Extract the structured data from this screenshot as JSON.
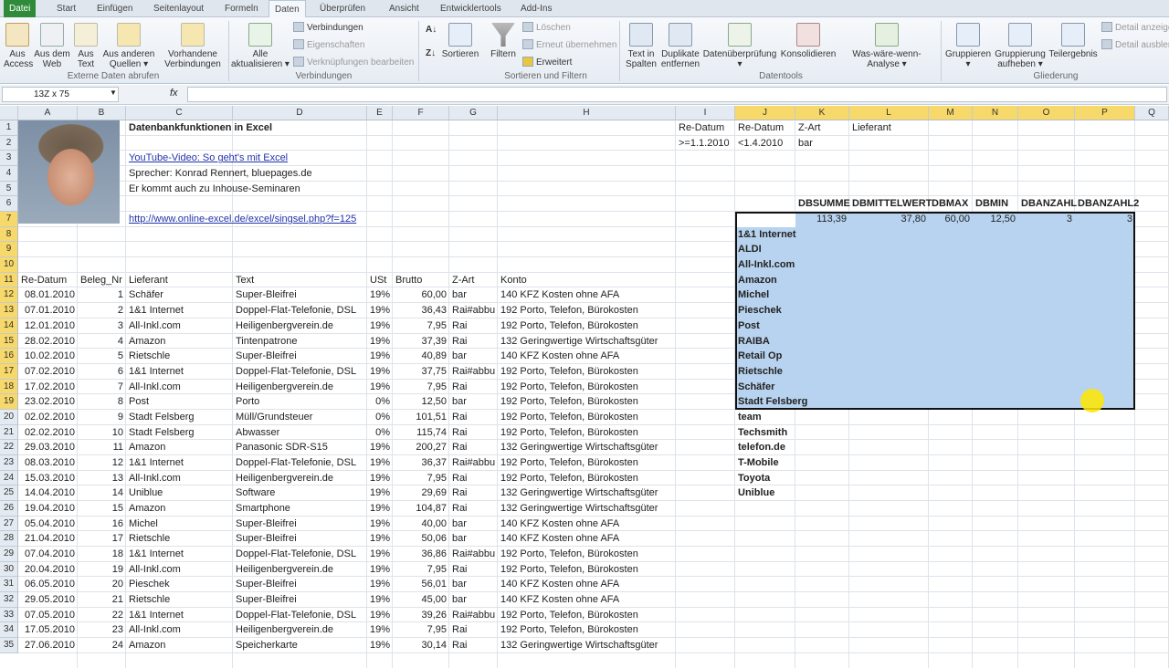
{
  "tabs": [
    "Datei",
    "Start",
    "Einfügen",
    "Seitenlayout",
    "Formeln",
    "Daten",
    "Überprüfen",
    "Ansicht",
    "Entwicklertools",
    "Add-Ins"
  ],
  "active_tab": "Daten",
  "ribbon": {
    "externe": {
      "aus_access": "Aus Access",
      "aus_web": "Aus dem Web",
      "aus_text": "Aus Text",
      "aus_anderen": "Aus anderen Quellen ▾",
      "vorhandene": "Vorhandene Verbindungen",
      "group": "Externe Daten abrufen"
    },
    "verbindungen": {
      "alle": "Alle aktualisieren ▾",
      "verbindungen": "Verbindungen",
      "eigenschaften": "Eigenschaften",
      "verknuepfungen": "Verknüpfungen bearbeiten",
      "group": "Verbindungen"
    },
    "sortieren": {
      "sortieren": "Sortieren",
      "filtern": "Filtern",
      "loeschen": "Löschen",
      "erneut": "Erneut übernehmen",
      "erweitert": "Erweitert",
      "group": "Sortieren und Filtern"
    },
    "datentools": {
      "text_in_spalten": "Text in Spalten",
      "duplikate": "Duplikate entfernen",
      "datenueberpruefung": "Datenüberprüfung ▾",
      "konsolidieren": "Konsolidieren",
      "was_waere": "Was-wäre-wenn-Analyse ▾",
      "group": "Datentools"
    },
    "gliederung": {
      "gruppieren": "Gruppieren ▾",
      "gruppierung_aufheben": "Gruppierung aufheben ▾",
      "teilergebnis": "Teilergebnis",
      "detail_anzeigen": "Detail anzeigen",
      "detail_ausblenden": "Detail ausblenden",
      "group": "Gliederung"
    }
  },
  "formula_bar": {
    "name_box": "13Z x 75",
    "fx": "fx",
    "formula": ""
  },
  "columns": [
    "A",
    "B",
    "C",
    "D",
    "E",
    "F",
    "G",
    "H",
    "I",
    "J",
    "K",
    "L",
    "M",
    "N",
    "O",
    "P",
    "Q"
  ],
  "rows": [
    {
      "n": 1,
      "cells": {
        "C": "Datenbankfunktionen in Excel",
        "I": "Re-Datum",
        "J": "Re-Datum",
        "K": "Z-Art",
        "L": "Lieferant"
      }
    },
    {
      "n": 2,
      "cells": {
        "I": ">=1.1.2010",
        "J": "<1.4.2010",
        "K": "bar"
      }
    },
    {
      "n": 3,
      "cells": {
        "C": "YouTube-Video: So geht's mit Excel"
      }
    },
    {
      "n": 4,
      "cells": {
        "C": "Sprecher: Konrad Rennert, bluepages.de"
      }
    },
    {
      "n": 5,
      "cells": {
        "C": "Er kommt auch zu Inhouse-Seminaren"
      }
    },
    {
      "n": 6,
      "cells": {
        "K": "DBSUMME",
        "L": "DBMITTELWERT",
        "M": "DBMAX",
        "N": "DBMIN",
        "O": "DBANZAHL",
        "P": "DBANZAHL2"
      }
    },
    {
      "n": 7,
      "cells": {
        "C": "http://www.online-excel.de/excel/singsel.php?f=125",
        "K": "113,39",
        "L": "37,80",
        "M": "60,00",
        "N": "12,50",
        "O": "3",
        "P": "3"
      }
    },
    {
      "n": 8,
      "cells": {
        "J": "1&1 Internet"
      }
    },
    {
      "n": 9,
      "cells": {
        "J": "ALDI"
      }
    },
    {
      "n": 10,
      "cells": {
        "J": "All-Inkl.com"
      }
    },
    {
      "n": 11,
      "cells": {
        "A": "Re-Datum",
        "B": "Beleg_Nr",
        "C": "Lieferant",
        "D": "Text",
        "E": "USt",
        "F": "Brutto",
        "G": "Z-Art",
        "H": "Konto",
        "J": "Amazon"
      }
    },
    {
      "n": 12,
      "cells": {
        "A": "08.01.2010",
        "B": "1",
        "C": "Schäfer",
        "D": "Super-Bleifrei",
        "E": "19%",
        "F": "60,00",
        "G": "bar",
        "H": "140 KFZ Kosten ohne AFA",
        "J": "Michel"
      }
    },
    {
      "n": 13,
      "cells": {
        "A": "07.01.2010",
        "B": "2",
        "C": "1&1 Internet",
        "D": "Doppel-Flat-Telefonie, DSL",
        "E": "19%",
        "F": "36,43",
        "G": "Rai#abbu",
        "H": "192 Porto, Telefon, Bürokosten",
        "J": "Pieschek"
      }
    },
    {
      "n": 14,
      "cells": {
        "A": "12.01.2010",
        "B": "3",
        "C": "All-Inkl.com",
        "D": "Heiligenbergverein.de",
        "E": "19%",
        "F": "7,95",
        "G": "Rai",
        "H": "192 Porto, Telefon, Bürokosten",
        "J": "Post"
      }
    },
    {
      "n": 15,
      "cells": {
        "A": "28.02.2010",
        "B": "4",
        "C": "Amazon",
        "D": "Tintenpatrone",
        "E": "19%",
        "F": "37,39",
        "G": "Rai",
        "H": "132 Geringwertige Wirtschaftsgüter",
        "J": "RAIBA"
      }
    },
    {
      "n": 16,
      "cells": {
        "A": "10.02.2010",
        "B": "5",
        "C": "Rietschle",
        "D": "Super-Bleifrei",
        "E": "19%",
        "F": "40,89",
        "G": "bar",
        "H": "140 KFZ Kosten ohne AFA",
        "J": "Retail Op"
      }
    },
    {
      "n": 17,
      "cells": {
        "A": "07.02.2010",
        "B": "6",
        "C": "1&1 Internet",
        "D": "Doppel-Flat-Telefonie, DSL",
        "E": "19%",
        "F": "37,75",
        "G": "Rai#abbu",
        "H": "192 Porto, Telefon, Bürokosten",
        "J": "Rietschle"
      }
    },
    {
      "n": 18,
      "cells": {
        "A": "17.02.2010",
        "B": "7",
        "C": "All-Inkl.com",
        "D": "Heiligenbergverein.de",
        "E": "19%",
        "F": "7,95",
        "G": "Rai",
        "H": "192 Porto, Telefon, Bürokosten",
        "J": "Schäfer"
      }
    },
    {
      "n": 19,
      "cells": {
        "A": "23.02.2010",
        "B": "8",
        "C": "Post",
        "D": "Porto",
        "E": "0%",
        "F": "12,50",
        "G": "bar",
        "H": "192 Porto, Telefon, Bürokosten",
        "J": "Stadt Felsberg"
      }
    },
    {
      "n": 20,
      "cells": {
        "A": "02.02.2010",
        "B": "9",
        "C": "Stadt Felsberg",
        "D": "Müll/Grundsteuer",
        "E": "0%",
        "F": "101,51",
        "G": "Rai",
        "H": "192 Porto, Telefon, Bürokosten",
        "J": "team"
      }
    },
    {
      "n": 21,
      "cells": {
        "A": "02.02.2010",
        "B": "10",
        "C": "Stadt Felsberg",
        "D": "Abwasser",
        "E": "0%",
        "F": "115,74",
        "G": "Rai",
        "H": "192 Porto, Telefon, Bürokosten",
        "J": "Techsmith"
      }
    },
    {
      "n": 22,
      "cells": {
        "A": "29.03.2010",
        "B": "11",
        "C": "Amazon",
        "D": "Panasonic SDR-S15",
        "E": "19%",
        "F": "200,27",
        "G": "Rai",
        "H": "132 Geringwertige Wirtschaftsgüter",
        "J": "telefon.de"
      }
    },
    {
      "n": 23,
      "cells": {
        "A": "08.03.2010",
        "B": "12",
        "C": "1&1 Internet",
        "D": "Doppel-Flat-Telefonie, DSL",
        "E": "19%",
        "F": "36,37",
        "G": "Rai#abbu",
        "H": "192 Porto, Telefon, Bürokosten",
        "J": "T-Mobile"
      }
    },
    {
      "n": 24,
      "cells": {
        "A": "15.03.2010",
        "B": "13",
        "C": "All-Inkl.com",
        "D": "Heiligenbergverein.de",
        "E": "19%",
        "F": "7,95",
        "G": "Rai",
        "H": "192 Porto, Telefon, Bürokosten",
        "J": "Toyota"
      }
    },
    {
      "n": 25,
      "cells": {
        "A": "14.04.2010",
        "B": "14",
        "C": "Uniblue",
        "D": "Software",
        "E": "19%",
        "F": "29,69",
        "G": "Rai",
        "H": "132 Geringwertige Wirtschaftsgüter",
        "J": "Uniblue"
      }
    },
    {
      "n": 26,
      "cells": {
        "A": "19.04.2010",
        "B": "15",
        "C": "Amazon",
        "D": "Smartphone",
        "E": "19%",
        "F": "104,87",
        "G": "Rai",
        "H": "132 Geringwertige Wirtschaftsgüter"
      }
    },
    {
      "n": 27,
      "cells": {
        "A": "05.04.2010",
        "B": "16",
        "C": "Michel",
        "D": "Super-Bleifrei",
        "E": "19%",
        "F": "40,00",
        "G": "bar",
        "H": "140 KFZ Kosten ohne AFA"
      }
    },
    {
      "n": 28,
      "cells": {
        "A": "21.04.2010",
        "B": "17",
        "C": "Rietschle",
        "D": "Super-Bleifrei",
        "E": "19%",
        "F": "50,06",
        "G": "bar",
        "H": "140 KFZ Kosten ohne AFA"
      }
    },
    {
      "n": 29,
      "cells": {
        "A": "07.04.2010",
        "B": "18",
        "C": "1&1 Internet",
        "D": "Doppel-Flat-Telefonie, DSL",
        "E": "19%",
        "F": "36,86",
        "G": "Rai#abbu",
        "H": "192 Porto, Telefon, Bürokosten"
      }
    },
    {
      "n": 30,
      "cells": {
        "A": "20.04.2010",
        "B": "19",
        "C": "All-Inkl.com",
        "D": "Heiligenbergverein.de",
        "E": "19%",
        "F": "7,95",
        "G": "Rai",
        "H": "192 Porto, Telefon, Bürokosten"
      }
    },
    {
      "n": 31,
      "cells": {
        "A": "06.05.2010",
        "B": "20",
        "C": "Pieschek",
        "D": "Super-Bleifrei",
        "E": "19%",
        "F": "56,01",
        "G": "bar",
        "H": "140 KFZ Kosten ohne AFA"
      }
    },
    {
      "n": 32,
      "cells": {
        "A": "29.05.2010",
        "B": "21",
        "C": "Rietschle",
        "D": "Super-Bleifrei",
        "E": "19%",
        "F": "45,00",
        "G": "bar",
        "H": "140 KFZ Kosten ohne AFA"
      }
    },
    {
      "n": 33,
      "cells": {
        "A": "07.05.2010",
        "B": "22",
        "C": "1&1 Internet",
        "D": "Doppel-Flat-Telefonie, DSL",
        "E": "19%",
        "F": "39,26",
        "G": "Rai#abbu",
        "H": "192 Porto, Telefon, Bürokosten"
      }
    },
    {
      "n": 34,
      "cells": {
        "A": "17.05.2010",
        "B": "23",
        "C": "All-Inkl.com",
        "D": "Heiligenbergverein.de",
        "E": "19%",
        "F": "7,95",
        "G": "Rai",
        "H": "192 Porto, Telefon, Bürokosten"
      }
    },
    {
      "n": 35,
      "cells": {
        "A": "27.06.2010",
        "B": "24",
        "C": "Amazon",
        "D": "Speicherkarte",
        "E": "19%",
        "F": "30,14",
        "G": "Rai",
        "H": "132 Geringwertige Wirtschaftsgüter"
      }
    }
  ],
  "selection": {
    "range": "J7:P19",
    "fill": "#b8d3ef"
  },
  "colors": {
    "file_tab": "#2f8b3a",
    "header_highlight": "#f7d86a",
    "link": "#2233aa",
    "cursor": "#ffe600"
  }
}
